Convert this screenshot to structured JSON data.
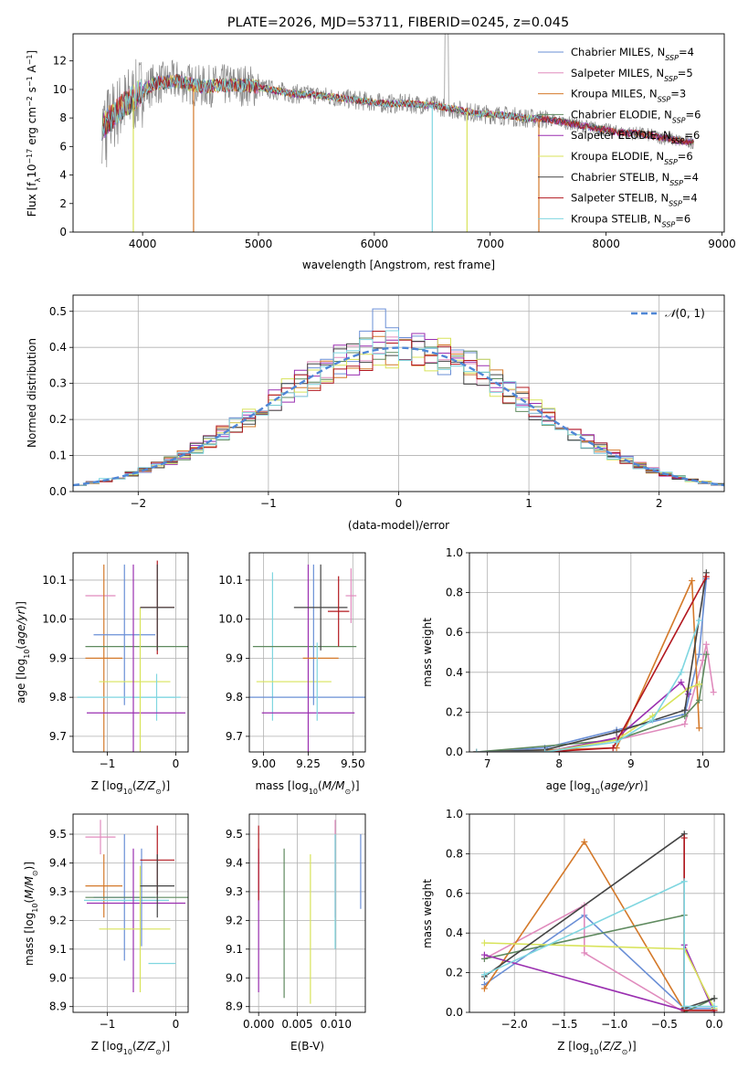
{
  "figure_title": "PLATE=2026, MJD=53711, FIBERID=0245, z=0.045",
  "colors": {
    "Chabrier MILES": "#6a8fd6",
    "Salpeter MILES": "#e08bbd",
    "Kroupa MILES": "#d4792a",
    "Chabrier ELODIE": "#5f8a5f",
    "Salpeter ELODIE": "#9a2fb0",
    "Kroupa ELODIE": "#d8e35a",
    "Chabrier STELIB": "#444444",
    "Salpeter STELIB": "#b3181f",
    "Kroupa STELIB": "#7fd6e0",
    "data": "#8a8a8a",
    "normal": "#4f86d6"
  },
  "chart_data": [
    {
      "id": "spectrum",
      "type": "line",
      "title": "PLATE=2026, MJD=53711, FIBERID=0245, z=0.045",
      "xlabel": "wavelength [Angstrom, rest frame]",
      "ylabel_parts": [
        "Flux [f",
        "λ",
        "10",
        "−17",
        " erg cm",
        "−2",
        " s",
        "−1",
        " A",
        "−1",
        "]"
      ],
      "xlim": [
        3400,
        9020
      ],
      "ylim": [
        0,
        13.9
      ],
      "xticks": [
        4000,
        5000,
        6000,
        7000,
        8000,
        9000
      ],
      "yticks": [
        0,
        2,
        4,
        6,
        8,
        10,
        12
      ],
      "grid": false,
      "legend_position": "top-right",
      "legend": [
        {
          "name": "Chabrier MILES",
          "nssp": "4"
        },
        {
          "name": "Salpeter MILES",
          "nssp": "5"
        },
        {
          "name": "Kroupa MILES",
          "nssp": "3"
        },
        {
          "name": "Chabrier ELODIE",
          "nssp": "6"
        },
        {
          "name": "Salpeter ELODIE",
          "nssp": "6"
        },
        {
          "name": "Kroupa ELODIE",
          "nssp": "6"
        },
        {
          "name": "Chabrier STELIB",
          "nssp": "4"
        },
        {
          "name": "Salpeter STELIB",
          "nssp": "4"
        },
        {
          "name": "Kroupa STELIB",
          "nssp": "6"
        }
      ],
      "continuum": [
        [
          3650,
          7.4
        ],
        [
          3800,
          8.6
        ],
        [
          3950,
          9.6
        ],
        [
          4100,
          10.4
        ],
        [
          4300,
          10.6
        ],
        [
          4500,
          10.2
        ],
        [
          4700,
          10.3
        ],
        [
          4900,
          10.3
        ],
        [
          5100,
          10.0
        ],
        [
          5300,
          9.7
        ],
        [
          5500,
          9.6
        ],
        [
          5700,
          9.4
        ],
        [
          5900,
          9.2
        ],
        [
          6100,
          9.0
        ],
        [
          6300,
          9.0
        ],
        [
          6500,
          8.9
        ],
        [
          6700,
          8.6
        ],
        [
          6900,
          8.3
        ],
        [
          7100,
          8.2
        ],
        [
          7300,
          8.0
        ],
        [
          7500,
          7.9
        ],
        [
          7700,
          7.6
        ],
        [
          7900,
          7.3
        ],
        [
          8100,
          7.0
        ],
        [
          8300,
          6.9
        ],
        [
          8500,
          6.6
        ],
        [
          8700,
          6.3
        ],
        [
          8760,
          6.3
        ]
      ],
      "dropouts": [
        {
          "series": "Kroupa ELODIE",
          "x": 3920
        },
        {
          "series": "Kroupa MILES",
          "x": 4440
        },
        {
          "series": "Kroupa STELIB",
          "x": 6500
        },
        {
          "series": "Kroupa ELODIE",
          "x": 6800
        },
        {
          "series": "Kroupa MILES",
          "x": 7420
        }
      ],
      "model_end_x": 7420,
      "data_spike_x": [
        6610,
        6640
      ]
    },
    {
      "id": "residuals",
      "type": "histogram",
      "xlabel": "(data-model)/error",
      "ylabel": "Normed distribution",
      "xlim": [
        -2.5,
        2.5
      ],
      "ylim": [
        0,
        0.545
      ],
      "xticks": [
        -2,
        -1,
        0,
        1,
        2
      ],
      "yticks": [
        0.0,
        0.1,
        0.2,
        0.3,
        0.4,
        0.5
      ],
      "grid": true,
      "legend_position": "top-right",
      "legend_label": "N(0, 1)",
      "bin_width": 0.1
    },
    {
      "id": "Z-age",
      "type": "errorbar",
      "xlabel": "Z [log10(Z/Z⊙)]",
      "ylabel": "age  [log10(age/yr)]",
      "xlim": [
        -1.5,
        0.18
      ],
      "ylim": [
        9.66,
        10.17
      ],
      "xticks": [
        -1,
        0
      ],
      "yticks": [
        9.7,
        9.8,
        9.9,
        10.0,
        10.1
      ],
      "grid": true,
      "points": [
        {
          "series": "Salpeter MILES",
          "x": -1.1,
          "xerr": 0.22,
          "y": 10.06,
          "yerr": 0
        },
        {
          "series": "Kroupa MILES",
          "x": -1.05,
          "xerr": 0.27,
          "y": 9.9,
          "yerr": 0.24
        },
        {
          "series": "Chabrier ELODIE",
          "x": -0.55,
          "xerr": 0.77,
          "y": 9.93,
          "yerr": 0
        },
        {
          "series": "Chabrier MILES",
          "x": -0.75,
          "xerr": 0.45,
          "y": 9.96,
          "yerr": 0.18
        },
        {
          "series": "Kroupa ELODIE",
          "x": -0.6,
          "xerr": 0.52,
          "y": 9.84,
          "yerr": 0
        },
        {
          "series": "Kroupa STELIB",
          "x": -0.72,
          "xerr": 0.72,
          "y": 9.8,
          "yerr": 0
        },
        {
          "series": "Kroupa STELIB",
          "x": -0.28,
          "xerr": 0.35,
          "y": 9.8,
          "yerr": 0.06
        },
        {
          "series": "Salpeter ELODIE",
          "x": -0.58,
          "xerr": 0.72,
          "y": 9.76,
          "yerr": 0
        },
        {
          "series": "Salpeter ELODIE",
          "x": -0.62,
          "xerr": 0,
          "y": 9.9,
          "yerr": 0.24
        },
        {
          "series": "Kroupa ELODIE",
          "x": -0.52,
          "xerr": 0,
          "y": 9.84,
          "yerr": 0.19
        },
        {
          "series": "Salpeter STELIB",
          "x": -0.27,
          "xerr": 0.25,
          "y": 10.03,
          "yerr": 0.12
        },
        {
          "series": "Chabrier STELIB",
          "x": -0.27,
          "xerr": 0.25,
          "y": 10.03,
          "yerr": 0.11
        }
      ]
    },
    {
      "id": "mass-age",
      "type": "errorbar",
      "xlabel": "mass [log10(M/M⊙)]",
      "ylabel": "",
      "xlim": [
        8.92,
        9.57
      ],
      "ylim": [
        9.66,
        10.17
      ],
      "xticks": [
        9.0,
        9.25,
        9.5
      ],
      "yticks": [
        9.7,
        9.8,
        9.9,
        10.0,
        10.1
      ],
      "grid": true,
      "points": [
        {
          "series": "Kroupa STELIB",
          "x": 9.05,
          "xerr": 0,
          "y": 9.93,
          "yerr": 0.19
        },
        {
          "series": "Chabrier ELODIE",
          "x": 9.23,
          "xerr": 0.29,
          "y": 9.93,
          "yerr": 0
        },
        {
          "series": "Kroupa ELODIE",
          "x": 9.17,
          "xerr": 0.21,
          "y": 9.84,
          "yerr": 0
        },
        {
          "series": "Chabrier MILES",
          "x": 9.26,
          "xerr": 0.35,
          "y": 9.8,
          "yerr": 0
        },
        {
          "series": "Chabrier MILES",
          "x": 9.28,
          "xerr": 0,
          "y": 9.96,
          "yerr": 0.18
        },
        {
          "series": "Salpeter ELODIE",
          "x": 9.25,
          "xerr": 0.26,
          "y": 9.76,
          "yerr": 0
        },
        {
          "series": "Salpeter ELODIE",
          "x": 9.25,
          "xerr": 0,
          "y": 9.9,
          "yerr": 0.24
        },
        {
          "series": "Kroupa MILES",
          "x": 9.32,
          "xerr": 0.1,
          "y": 9.9,
          "yerr": 0
        },
        {
          "series": "Chabrier STELIB",
          "x": 9.32,
          "xerr": 0.15,
          "y": 10.03,
          "yerr": 0.11
        },
        {
          "series": "Salpeter STELIB",
          "x": 9.42,
          "xerr": 0.06,
          "y": 10.02,
          "yerr": 0.09
        },
        {
          "series": "Salpeter MILES",
          "x": 9.49,
          "xerr": 0.03,
          "y": 10.06,
          "yerr": 0.07
        },
        {
          "series": "Kroupa STELIB",
          "x": 9.3,
          "xerr": 0,
          "y": 9.84,
          "yerr": 0.1
        }
      ]
    },
    {
      "id": "age-weight",
      "type": "line",
      "xlabel": "age  [log10(age/yr)]",
      "ylabel": "mass weight",
      "xlim": [
        6.75,
        10.3
      ],
      "ylim": [
        0,
        1
      ],
      "xticks": [
        7,
        8,
        9,
        10
      ],
      "yticks": [
        0.0,
        0.2,
        0.4,
        0.6,
        0.8,
        1.0
      ],
      "grid": true,
      "series": [
        {
          "name": "Chabrier MILES",
          "x": [
            6.85,
            7.8,
            8.8,
            9.75,
            9.95,
            10.05
          ],
          "y": [
            0.0,
            0.02,
            0.11,
            0.19,
            0.49,
            0.87
          ]
        },
        {
          "name": "Salpeter MILES",
          "x": [
            6.85,
            7.8,
            8.8,
            9.75,
            10.0,
            10.05,
            10.15
          ],
          "y": [
            0.0,
            0.0,
            0.06,
            0.14,
            0.46,
            0.54,
            0.3
          ]
        },
        {
          "name": "Kroupa MILES",
          "x": [
            6.85,
            8.8,
            9.85,
            9.95
          ],
          "y": [
            0.0,
            0.02,
            0.86,
            0.12
          ]
        },
        {
          "name": "Chabrier ELODIE",
          "x": [
            6.85,
            8.8,
            9.75,
            9.95,
            10.05
          ],
          "y": [
            0.0,
            0.06,
            0.18,
            0.26,
            0.49
          ]
        },
        {
          "name": "Salpeter ELODIE",
          "x": [
            6.85,
            7.8,
            8.8,
            9.7,
            9.8
          ],
          "y": [
            0.0,
            0.0,
            0.07,
            0.35,
            0.29
          ]
        },
        {
          "name": "Kroupa ELODIE",
          "x": [
            6.85,
            7.8,
            8.8,
            9.3,
            9.8,
            9.95
          ],
          "y": [
            0.0,
            0.0,
            0.06,
            0.18,
            0.32,
            0.34
          ]
        },
        {
          "name": "Chabrier STELIB",
          "x": [
            6.85,
            7.8,
            8.8,
            9.75,
            10.05
          ],
          "y": [
            0.0,
            0.01,
            0.1,
            0.21,
            0.9
          ]
        },
        {
          "name": "Salpeter STELIB",
          "x": [
            6.85,
            7.8,
            8.75,
            10.05
          ],
          "y": [
            0.0,
            0.0,
            0.02,
            0.88
          ]
        },
        {
          "name": "Kroupa STELIB",
          "x": [
            6.85,
            7.8,
            8.8,
            9.3,
            9.7,
            9.95
          ],
          "y": [
            0.0,
            0.0,
            0.05,
            0.16,
            0.4,
            0.66
          ]
        }
      ]
    },
    {
      "id": "Z-mass",
      "type": "errorbar",
      "xlabel": "Z [log10(Z/Z⊙)]",
      "ylabel": "mass [log10(M/M⊙)]",
      "xlim": [
        -1.5,
        0.18
      ],
      "ylim": [
        8.88,
        9.57
      ],
      "xticks": [
        -1,
        0
      ],
      "yticks": [
        8.9,
        9.0,
        9.1,
        9.2,
        9.3,
        9.4,
        9.5
      ],
      "grid": true,
      "points": [
        {
          "series": "Salpeter MILES",
          "x": -1.1,
          "xerr": 0.22,
          "y": 9.49,
          "yerr": 0.06
        },
        {
          "series": "Kroupa MILES",
          "x": -1.05,
          "xerr": 0.27,
          "y": 9.32,
          "yerr": 0.11
        },
        {
          "series": "Chabrier MILES",
          "x": -0.75,
          "xerr": 0.45,
          "y": 9.28,
          "yerr": 0.22
        },
        {
          "series": "Chabrier ELODIE",
          "x": -0.55,
          "xerr": 0.77,
          "y": 9.28,
          "yerr": 0
        },
        {
          "series": "Kroupa STELIB",
          "x": -0.72,
          "xerr": 0.62,
          "y": 9.27,
          "yerr": 0
        },
        {
          "series": "Salpeter ELODIE",
          "x": -0.58,
          "xerr": 0.72,
          "y": 9.26,
          "yerr": 0
        },
        {
          "series": "Salpeter ELODIE",
          "x": -0.62,
          "xerr": 0,
          "y": 9.2,
          "yerr": 0.25
        },
        {
          "series": "Kroupa ELODIE",
          "x": -0.6,
          "xerr": 0.52,
          "y": 9.17,
          "yerr": 0
        },
        {
          "series": "Kroupa ELODIE",
          "x": -0.52,
          "xerr": 0,
          "y": 9.17,
          "yerr": 0.22
        },
        {
          "series": "Chabrier MILES",
          "x": -0.5,
          "xerr": 0,
          "y": 9.28,
          "yerr": 0.17
        },
        {
          "series": "Salpeter STELIB",
          "x": -0.27,
          "xerr": 0.25,
          "y": 9.41,
          "yerr": 0.12
        },
        {
          "series": "Chabrier STELIB",
          "x": -0.27,
          "xerr": 0.25,
          "y": 9.32,
          "yerr": 0.11
        },
        {
          "series": "Kroupa STELIB",
          "x": -0.2,
          "xerr": 0.2,
          "y": 9.05,
          "yerr": 0
        }
      ]
    },
    {
      "id": "ebv-mass",
      "type": "errorbar",
      "xlabel": "E(B-V)",
      "ylabel": "",
      "xlim": [
        -0.0012,
        0.0138
      ],
      "ylim": [
        8.88,
        9.57
      ],
      "xticks": [
        0.0,
        0.005,
        0.01
      ],
      "xtick_labels": [
        "0.000",
        "0.005",
        "0.010"
      ],
      "yticks": [
        8.9,
        9.0,
        9.1,
        9.2,
        9.3,
        9.4,
        9.5
      ],
      "grid": true,
      "points": [
        {
          "series": "Salpeter ELODIE",
          "x": 0.0,
          "xerr": 0,
          "y": 9.2,
          "yerr": 0.25
        },
        {
          "series": "Salpeter STELIB",
          "x": 0.0,
          "xerr": 0,
          "y": 9.4,
          "yerr": 0.13
        },
        {
          "series": "Chabrier ELODIE",
          "x": 0.0033,
          "xerr": 0,
          "y": 9.19,
          "yerr": 0.26
        },
        {
          "series": "Kroupa ELODIE",
          "x": 0.0067,
          "xerr": 0,
          "y": 9.17,
          "yerr": 0.26
        },
        {
          "series": "Salpeter MILES",
          "x": 0.0099,
          "xerr": 0,
          "y": 9.38,
          "yerr": 0.17
        },
        {
          "series": "Kroupa STELIB",
          "x": 0.0099,
          "xerr": 0,
          "y": 9.3,
          "yerr": 0.2
        },
        {
          "series": "Chabrier MILES",
          "x": 0.0132,
          "xerr": 0,
          "y": 9.37,
          "yerr": 0.13
        }
      ]
    },
    {
      "id": "Z-weight",
      "type": "line",
      "xlabel": "Z [log10(Z/Z⊙)]",
      "ylabel": "mass weight",
      "xlim": [
        -2.45,
        0.1
      ],
      "ylim": [
        0,
        1
      ],
      "xticks": [
        -2.0,
        -1.5,
        -1.0,
        -0.5,
        0.0
      ],
      "yticks": [
        0.0,
        0.2,
        0.4,
        0.6,
        0.8,
        1.0
      ],
      "grid": true,
      "series": [
        {
          "name": "Chabrier MILES",
          "x": [
            -2.3,
            -1.3,
            -0.3,
            0.0
          ],
          "y": [
            0.14,
            0.49,
            0.02,
            0.02
          ]
        },
        {
          "name": "Salpeter MILES",
          "x": [
            -2.3,
            -1.3,
            -1.3,
            -0.3,
            0.0
          ],
          "y": [
            0.27,
            0.54,
            0.3,
            0.0,
            0.0
          ]
        },
        {
          "name": "Kroupa MILES",
          "x": [
            -2.3,
            -1.3,
            -0.3,
            0.0
          ],
          "y": [
            0.12,
            0.86,
            0.01,
            0.01
          ]
        },
        {
          "name": "Chabrier ELODIE",
          "x": [
            -2.3,
            -0.3,
            -0.3,
            0.0
          ],
          "y": [
            0.27,
            0.49,
            0.0,
            0.07
          ]
        },
        {
          "name": "Salpeter ELODIE",
          "x": [
            -2.3,
            -0.3,
            -0.3,
            0.0
          ],
          "y": [
            0.29,
            0.01,
            0.34,
            0.0
          ]
        },
        {
          "name": "Kroupa ELODIE",
          "x": [
            -2.3,
            -0.3,
            0.0
          ],
          "y": [
            0.35,
            0.32,
            0.02
          ]
        },
        {
          "name": "Chabrier STELIB",
          "x": [
            -2.3,
            -0.3,
            -0.3,
            0.0
          ],
          "y": [
            0.18,
            0.9,
            0.02,
            0.07
          ]
        },
        {
          "name": "Salpeter STELIB",
          "x": [
            -0.3,
            -0.3,
            0.0
          ],
          "y": [
            0.88,
            0.01,
            0.01
          ]
        },
        {
          "name": "Kroupa STELIB",
          "x": [
            -2.3,
            -0.3,
            -0.3,
            0.0
          ],
          "y": [
            0.19,
            0.66,
            0.03,
            0.03
          ]
        }
      ]
    }
  ]
}
